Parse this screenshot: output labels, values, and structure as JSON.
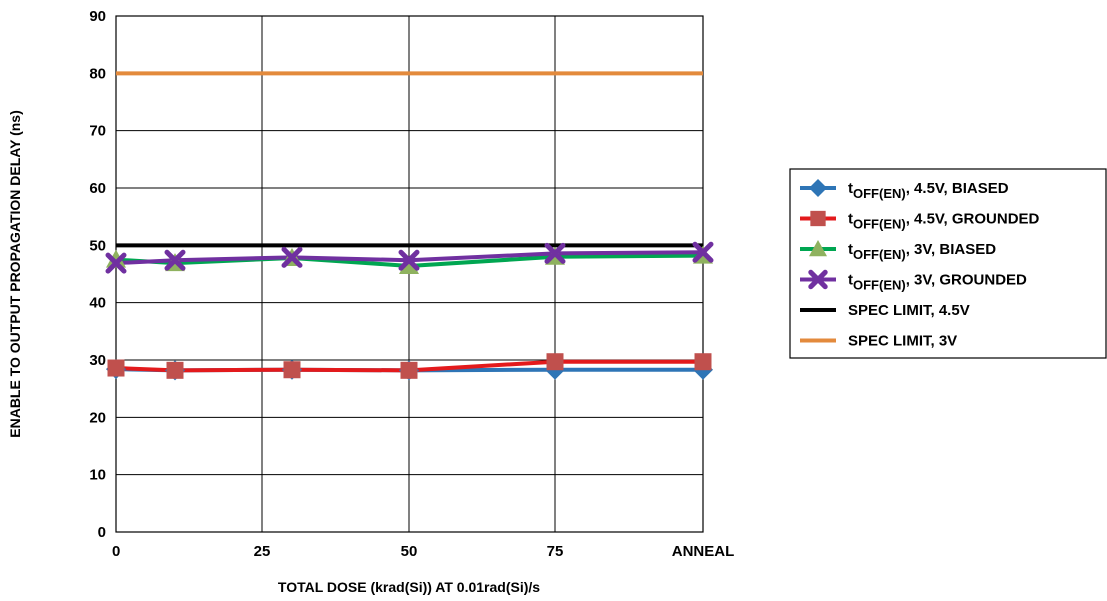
{
  "chart_data": {
    "type": "line",
    "categories": [
      "0",
      "10",
      "25",
      "50",
      "75",
      "ANNEAL"
    ],
    "x_tick_labels": [
      "0",
      "25",
      "50",
      "75",
      "ANNEAL"
    ],
    "y_tick_labels": [
      "0",
      "10",
      "20",
      "30",
      "40",
      "50",
      "60",
      "70",
      "80",
      "90"
    ],
    "xlabel": "TOTAL DOSE (krad(Si)) AT 0.01rad(Si)/s",
    "ylabel": "ENABLE TO OUTPUT PROPAGATION DELAY (ns)",
    "ylim": [
      0,
      90
    ],
    "grid": true,
    "legend_position": "right",
    "series": [
      {
        "name": "tOFF(EN), 4.5V, BIASED",
        "name_parts": {
          "t": "t",
          "sub": "OFF(EN)",
          "rest": ", 4.5V, BIASED"
        },
        "color": "#2e75b6",
        "marker": "diamond",
        "values": [
          28.4,
          28.2,
          28.3,
          28.2,
          28.3,
          28.3
        ]
      },
      {
        "name": "tOFF(EN), 4.5V, GROUNDED",
        "name_parts": {
          "t": "t",
          "sub": "OFF(EN)",
          "rest": ", 4.5V, GROUNDED"
        },
        "color": "#e31a1c",
        "marker_color": "#c0504d",
        "marker": "square",
        "values": [
          28.6,
          28.2,
          28.3,
          28.2,
          29.7,
          29.7
        ]
      },
      {
        "name": "tOFF(EN), 3V, BIASED",
        "name_parts": {
          "t": "t",
          "sub": "OFF(EN)",
          "rest": ", 3V, BIASED"
        },
        "color": "#00a651",
        "marker_color": "#8fb25f",
        "marker": "triangle",
        "values": [
          47.5,
          46.9,
          47.8,
          46.4,
          48.0,
          48.2
        ]
      },
      {
        "name": "tOFF(EN), 3V, GROUNDED",
        "name_parts": {
          "t": "t",
          "sub": "OFF(EN)",
          "rest": ", 3V, GROUNDED"
        },
        "color": "#7030a0",
        "marker": "x",
        "values": [
          46.9,
          47.4,
          47.9,
          47.4,
          48.6,
          48.8
        ]
      },
      {
        "name": "SPEC LIMIT, 4.5V",
        "color": "#000000",
        "marker": "none",
        "values": [
          50,
          50,
          50,
          50,
          50,
          50
        ]
      },
      {
        "name": "SPEC LIMIT, 3V",
        "color": "#e38a3c",
        "marker": "none",
        "values": [
          80,
          80,
          80,
          80,
          80,
          80
        ]
      }
    ]
  }
}
